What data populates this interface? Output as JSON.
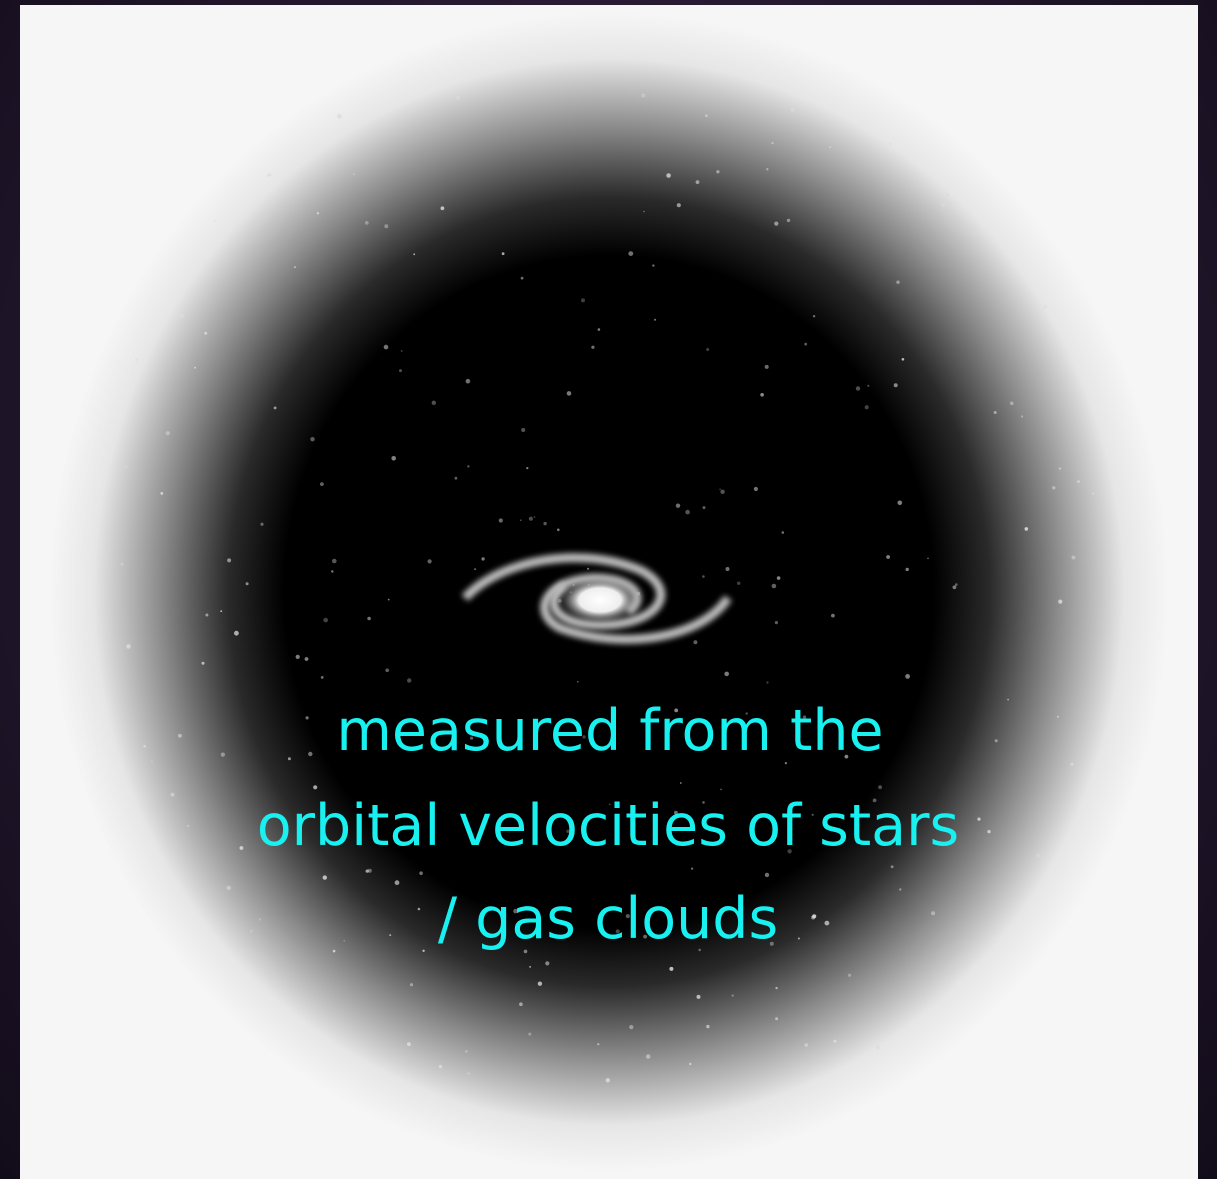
{
  "caption": {
    "lines": [
      "measured from the",
      "orbital velocities of stars",
      "/ gas clouds"
    ]
  }
}
